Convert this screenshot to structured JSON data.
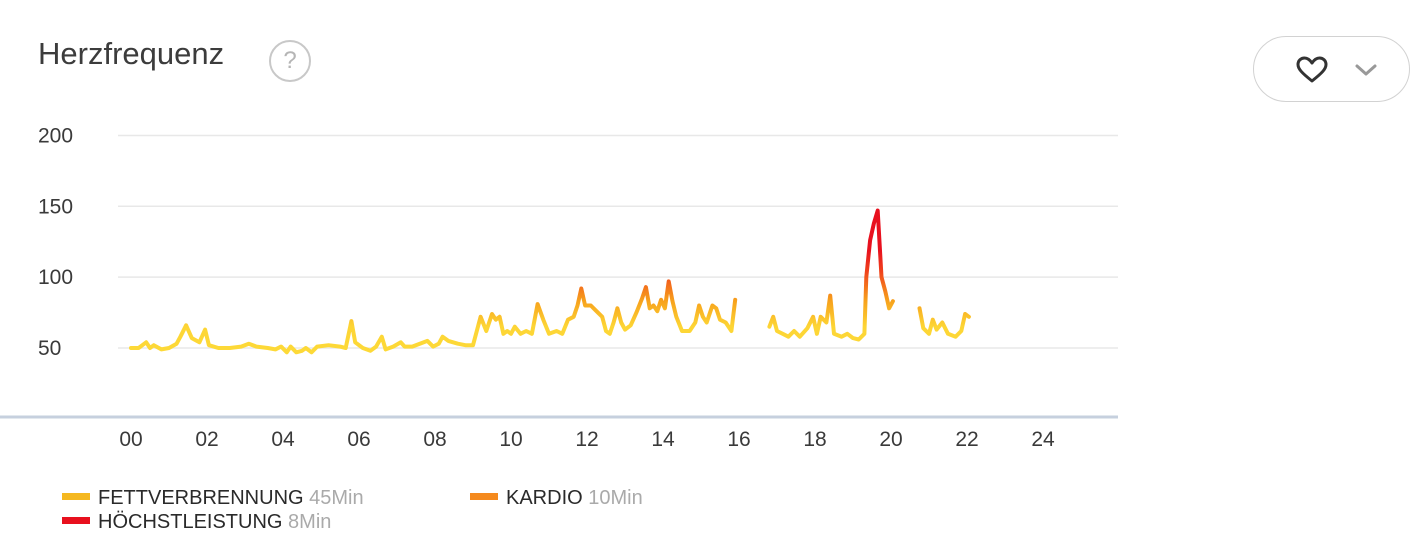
{
  "title": "Herzfrequenz",
  "help_glyph": "?",
  "favorite_button": {
    "icon": "heart-icon",
    "dropdown_icon": "chevron-down-icon"
  },
  "legend": [
    {
      "name": "FETTVERBRENNUNG",
      "duration": "45Min",
      "color": "#f5b820"
    },
    {
      "name": "KARDIO",
      "duration": "10Min",
      "color": "#f58a1e"
    },
    {
      "name": "HÖCHSTLEISTUNG",
      "duration": "8Min",
      "color": "#e8101e"
    }
  ],
  "chart_data": {
    "type": "line",
    "title": "Herzfrequenz",
    "xlabel": "",
    "ylabel": "",
    "xlim": [
      0,
      24
    ],
    "ylim": [
      30,
      200
    ],
    "x_ticks": [
      "00",
      "02",
      "04",
      "06",
      "08",
      "10",
      "12",
      "14",
      "16",
      "18",
      "20",
      "22",
      "24"
    ],
    "y_ticks": [
      50,
      100,
      150,
      200
    ],
    "grid": true,
    "series": [
      {
        "segments": [
          [
            [
              0.0,
              50
            ],
            [
              0.2,
              50
            ],
            [
              0.4,
              54
            ],
            [
              0.5,
              50
            ],
            [
              0.6,
              52
            ],
            [
              0.8,
              49
            ],
            [
              1.0,
              50
            ],
            [
              1.2,
              53
            ],
            [
              1.3,
              58
            ],
            [
              1.45,
              66
            ],
            [
              1.6,
              57
            ],
            [
              1.8,
              54
            ],
            [
              1.95,
              63
            ],
            [
              2.05,
              52
            ],
            [
              2.3,
              50
            ],
            [
              2.6,
              50
            ],
            [
              2.9,
              51
            ],
            [
              3.1,
              53
            ],
            [
              3.3,
              51
            ],
            [
              3.6,
              50
            ],
            [
              3.8,
              49
            ],
            [
              3.95,
              51
            ],
            [
              4.1,
              47
            ],
            [
              4.2,
              51
            ],
            [
              4.35,
              47
            ],
            [
              4.5,
              48
            ],
            [
              4.6,
              50
            ],
            [
              4.75,
              47
            ],
            [
              4.9,
              51
            ],
            [
              5.2,
              52
            ],
            [
              5.5,
              51
            ],
            [
              5.65,
              50
            ],
            [
              5.8,
              69
            ],
            [
              5.9,
              54
            ],
            [
              6.1,
              50
            ],
            [
              6.3,
              48
            ],
            [
              6.45,
              51
            ],
            [
              6.6,
              58
            ],
            [
              6.7,
              49
            ],
            [
              6.9,
              51
            ],
            [
              7.1,
              54
            ],
            [
              7.2,
              51
            ],
            [
              7.4,
              51
            ],
            [
              7.6,
              53
            ],
            [
              7.8,
              55
            ],
            [
              7.95,
              51
            ],
            [
              8.1,
              53
            ],
            [
              8.2,
              58
            ],
            [
              8.35,
              55
            ],
            [
              8.6,
              53
            ],
            [
              8.8,
              52
            ],
            [
              9.0,
              52
            ],
            [
              9.1,
              62
            ],
            [
              9.2,
              72
            ],
            [
              9.35,
              62
            ],
            [
              9.5,
              74
            ],
            [
              9.6,
              70
            ],
            [
              9.7,
              72
            ],
            [
              9.8,
              60
            ],
            [
              9.9,
              62
            ],
            [
              10.0,
              60
            ],
            [
              10.1,
              65
            ],
            [
              10.25,
              60
            ],
            [
              10.4,
              62
            ],
            [
              10.55,
              60
            ],
            [
              10.7,
              81
            ],
            [
              10.85,
              70
            ],
            [
              11.0,
              60
            ],
            [
              11.2,
              62
            ],
            [
              11.35,
              60
            ],
            [
              11.5,
              70
            ],
            [
              11.65,
              72
            ],
            [
              11.75,
              80
            ],
            [
              11.85,
              92
            ],
            [
              11.95,
              80
            ],
            [
              12.1,
              80
            ],
            [
              12.25,
              76
            ],
            [
              12.4,
              72
            ],
            [
              12.5,
              62
            ],
            [
              12.6,
              60
            ],
            [
              12.7,
              68
            ],
            [
              12.8,
              78
            ],
            [
              12.9,
              68
            ],
            [
              13.0,
              63
            ],
            [
              13.15,
              66
            ],
            [
              13.3,
              75
            ],
            [
              13.45,
              85
            ],
            [
              13.55,
              93
            ],
            [
              13.65,
              78
            ],
            [
              13.75,
              80
            ],
            [
              13.85,
              76
            ],
            [
              13.95,
              84
            ],
            [
              14.05,
              78
            ],
            [
              14.15,
              97
            ],
            [
              14.25,
              83
            ],
            [
              14.35,
              72
            ],
            [
              14.5,
              62
            ],
            [
              14.7,
              62
            ],
            [
              14.85,
              68
            ],
            [
              14.95,
              80
            ],
            [
              15.05,
              72
            ],
            [
              15.15,
              68
            ],
            [
              15.3,
              80
            ],
            [
              15.4,
              78
            ],
            [
              15.5,
              70
            ],
            [
              15.65,
              68
            ],
            [
              15.8,
              62
            ],
            [
              15.9,
              84
            ]
          ],
          [
            [
              16.8,
              65
            ],
            [
              16.9,
              72
            ],
            [
              17.0,
              62
            ],
            [
              17.15,
              60
            ],
            [
              17.3,
              58
            ],
            [
              17.45,
              62
            ],
            [
              17.6,
              58
            ],
            [
              17.8,
              64
            ],
            [
              17.95,
              72
            ],
            [
              18.05,
              60
            ],
            [
              18.15,
              72
            ],
            [
              18.3,
              68
            ],
            [
              18.4,
              87
            ],
            [
              18.5,
              60
            ],
            [
              18.7,
              58
            ],
            [
              18.85,
              60
            ],
            [
              19.0,
              57
            ],
            [
              19.15,
              56
            ],
            [
              19.3,
              60
            ],
            [
              19.35,
              100
            ],
            [
              19.45,
              126
            ],
            [
              19.55,
              138
            ],
            [
              19.65,
              147
            ],
            [
              19.75,
              100
            ],
            [
              19.85,
              90
            ],
            [
              19.95,
              78
            ],
            [
              20.05,
              83
            ]
          ],
          [
            [
              20.75,
              78
            ],
            [
              20.85,
              64
            ],
            [
              21.0,
              60
            ],
            [
              21.1,
              70
            ],
            [
              21.2,
              63
            ],
            [
              21.35,
              68
            ],
            [
              21.5,
              60
            ],
            [
              21.7,
              58
            ],
            [
              21.85,
              62
            ],
            [
              21.95,
              74
            ],
            [
              22.05,
              72
            ]
          ]
        ]
      }
    ]
  }
}
